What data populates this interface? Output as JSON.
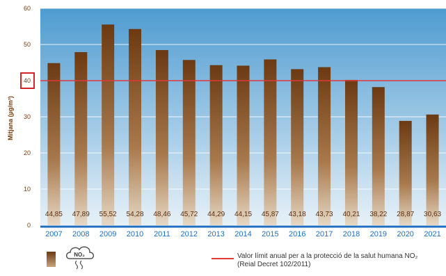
{
  "chart_data": {
    "type": "bar",
    "categories": [
      "2007",
      "2008",
      "2009",
      "2010",
      "2011",
      "2012",
      "2013",
      "2014",
      "2015",
      "2016",
      "2017",
      "2018",
      "2019",
      "2020",
      "2021"
    ],
    "values": [
      44.85,
      47.89,
      55.52,
      54.28,
      48.46,
      45.72,
      44.29,
      44.15,
      45.87,
      43.18,
      43.73,
      40.21,
      38.22,
      28.87,
      30.63
    ],
    "value_labels": [
      "44,85",
      "47,89",
      "55,52",
      "54,28",
      "48,46",
      "45,72",
      "44,29",
      "44,15",
      "45,87",
      "43,18",
      "43,73",
      "40,21",
      "38,22",
      "28,87",
      "30,63"
    ],
    "ylabel": "Mitjana (µg/m³)",
    "ylim": [
      0,
      60
    ],
    "yticks": [
      "0",
      "10",
      "20",
      "30",
      "40",
      "50",
      "60"
    ],
    "grid": true,
    "reference_line": {
      "value": 40,
      "label": "40",
      "color": "#e0383b"
    },
    "colors": {
      "bar_top": "#6b3a12",
      "bar_bottom": "#dcc8ad",
      "background_top": "#4e9bd0",
      "background_bottom": "#e7f1f8",
      "axis": "#1f6fc0"
    }
  },
  "legend": {
    "swatch_icon": "bar-gradient-swatch",
    "gas_icon": "no2-cloud-icon",
    "gas_label": "NO₂",
    "line_label_1": "Valor límit anual per a la protecció de la salut humana NO₂",
    "line_label_2": "(Reial Decret 102/2011)"
  }
}
